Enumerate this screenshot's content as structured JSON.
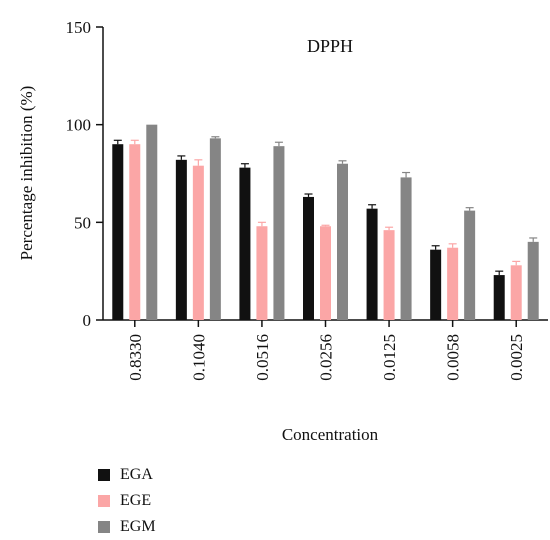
{
  "chart_data": {
    "type": "bar",
    "title": "DPPH",
    "xlabel": "Concentration",
    "ylabel": "Percentage inhibition (%)",
    "ylim": [
      0,
      150
    ],
    "yticks": [
      0,
      50,
      100,
      150
    ],
    "categories": [
      "0.8330",
      "0.1040",
      "0.0516",
      "0.0256",
      "0.0125",
      "0.0058",
      "0.0025"
    ],
    "series": [
      {
        "name": "EGA",
        "color": "#111111",
        "values": [
          90,
          82,
          78,
          63,
          57,
          36,
          23
        ],
        "errors": [
          2,
          2,
          2,
          1.5,
          2,
          2,
          2
        ]
      },
      {
        "name": "EGE",
        "color": "#fba6a6",
        "values": [
          90,
          79,
          48,
          48,
          46,
          37,
          28
        ],
        "errors": [
          2,
          3,
          2,
          0.5,
          1.5,
          2,
          2
        ]
      },
      {
        "name": "EGM",
        "color": "#858585",
        "values": [
          100,
          93,
          89,
          80,
          73,
          56,
          40
        ],
        "errors": [
          0,
          0.8,
          2,
          1.5,
          2.5,
          1.5,
          2
        ]
      }
    ],
    "grid": false,
    "legend_position": "bottom-left",
    "error_bars": true
  }
}
